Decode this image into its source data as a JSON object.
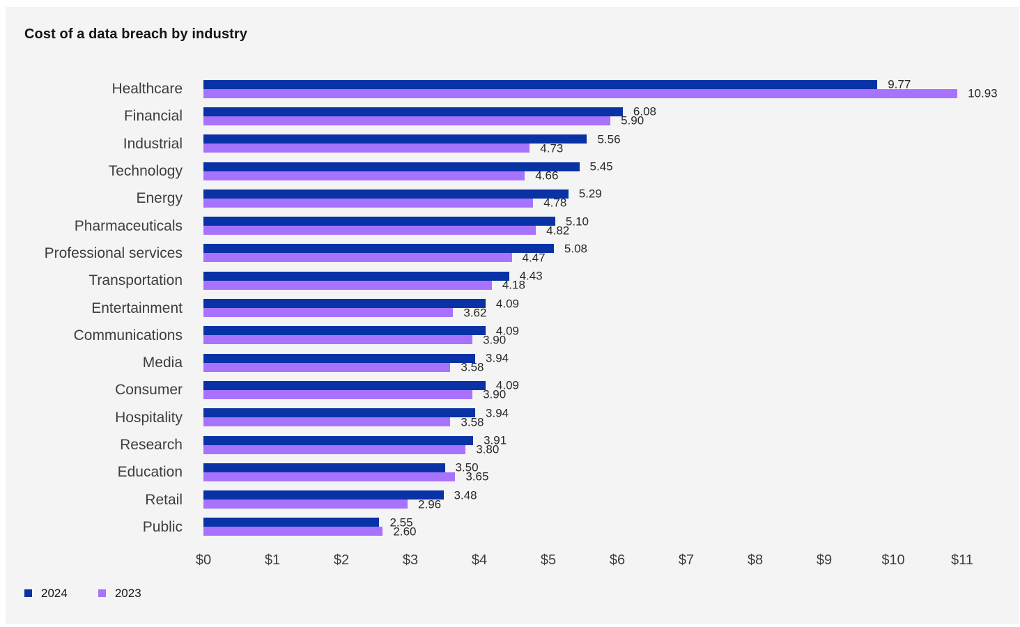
{
  "title": "Cost of a data breach by industry",
  "colors": {
    "background": "#f4f4f4",
    "series_2024": "#0832a5",
    "series_2023": "#a873fc",
    "text_dark": "#141414",
    "text_gray": "#3d3d3d"
  },
  "chart_data": {
    "type": "bar",
    "orientation": "horizontal",
    "title": "Cost of a data breach by industry",
    "xlabel": "",
    "ylabel": "",
    "unit": "USD millions",
    "xlim": [
      0,
      11
    ],
    "grid": false,
    "legend_position": "bottom-left",
    "x_tick_labels": [
      "$0",
      "$1",
      "$2",
      "$3",
      "$4",
      "$5",
      "$6",
      "$7",
      "$8",
      "$9",
      "$10",
      "$11"
    ],
    "categories": [
      "Healthcare",
      "Financial",
      "Industrial",
      "Technology",
      "Energy",
      "Pharmaceuticals",
      "Professional services",
      "Transportation",
      "Entertainment",
      "Communications",
      "Media",
      "Consumer",
      "Hospitality",
      "Research",
      "Education",
      "Retail",
      "Public"
    ],
    "series": [
      {
        "name": "2024",
        "color": "#0832a5",
        "values": [
          9.77,
          6.08,
          5.56,
          5.45,
          5.29,
          5.1,
          5.08,
          4.43,
          4.09,
          4.09,
          3.94,
          4.09,
          3.94,
          3.91,
          3.5,
          3.48,
          2.55
        ]
      },
      {
        "name": "2023",
        "color": "#a873fc",
        "values": [
          10.93,
          5.9,
          4.73,
          4.66,
          4.78,
          4.82,
          4.47,
          4.18,
          3.62,
          3.9,
          3.58,
          3.9,
          3.58,
          3.8,
          3.65,
          2.96,
          2.6
        ]
      }
    ]
  },
  "legend": {
    "items": [
      {
        "label": "2024",
        "color": "#0832a5"
      },
      {
        "label": "2023",
        "color": "#a873fc"
      }
    ]
  }
}
